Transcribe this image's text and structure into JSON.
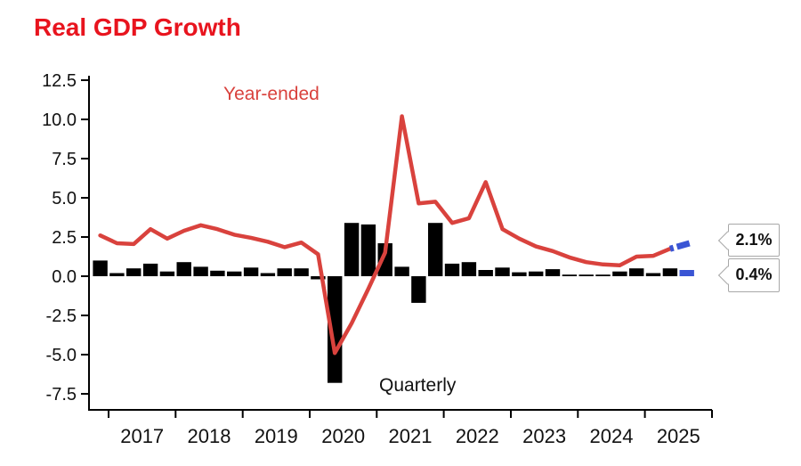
{
  "title": "Real GDP Growth",
  "series_labels": {
    "line": "Year-ended",
    "bar": "Quarterly"
  },
  "callouts": {
    "year_ended": "2.1%",
    "quarterly": "0.4%"
  },
  "colors": {
    "title": "#e8141e",
    "line": "#d9423d",
    "bar": "#000000",
    "highlight_blue": "#3a55d4",
    "axis": "#000000",
    "tick_label": "#111111",
    "callout_border": "#a8a8a8",
    "callout_text": "#111111",
    "background": "#ffffff"
  },
  "chart_data": {
    "type": "bar+line combo",
    "title": "Real GDP Growth",
    "unit": "%",
    "grid": false,
    "legend_position": "inline annotations",
    "ylim": [
      -7.5,
      12.5
    ],
    "yticks": [
      12.5,
      10.0,
      7.5,
      5.0,
      2.5,
      0.0,
      -2.5,
      -5.0,
      -7.5
    ],
    "x_axis_years": [
      "2017",
      "2018",
      "2019",
      "2020",
      "2021",
      "2022",
      "2023",
      "2024",
      "2025"
    ],
    "quarters": [
      "2016 Q4",
      "2017 Q1",
      "2017 Q2",
      "2017 Q3",
      "2017 Q4",
      "2018 Q1",
      "2018 Q2",
      "2018 Q3",
      "2018 Q4",
      "2019 Q1",
      "2019 Q2",
      "2019 Q3",
      "2019 Q4",
      "2020 Q1",
      "2020 Q2",
      "2020 Q3",
      "2020 Q4",
      "2021 Q1",
      "2021 Q2",
      "2021 Q3",
      "2021 Q4",
      "2022 Q1",
      "2022 Q2",
      "2022 Q3",
      "2022 Q4",
      "2023 Q1",
      "2023 Q2",
      "2023 Q3",
      "2023 Q4",
      "2024 Q1",
      "2024 Q2",
      "2024 Q3",
      "2024 Q4",
      "2025 Q1",
      "2025 Q2",
      "2025 Q3"
    ],
    "series": [
      {
        "name": "Quarterly",
        "type": "bar",
        "values": [
          1.0,
          0.2,
          0.5,
          0.8,
          0.3,
          0.9,
          0.6,
          0.35,
          0.3,
          0.55,
          0.2,
          0.5,
          0.5,
          -0.2,
          -6.8,
          3.4,
          3.3,
          2.1,
          0.6,
          -1.7,
          3.4,
          0.8,
          0.9,
          0.4,
          0.55,
          0.25,
          0.3,
          0.45,
          0.1,
          0.1,
          0.1,
          0.3,
          0.5,
          0.2,
          0.5,
          0.4
        ],
        "last_value_highlighted_blue": true,
        "latest_label": "0.4%"
      },
      {
        "name": "Year-ended",
        "type": "line",
        "values": [
          2.6,
          2.1,
          2.05,
          3.0,
          2.4,
          2.9,
          3.25,
          3.0,
          2.65,
          2.45,
          2.2,
          1.85,
          2.15,
          1.4,
          -4.9,
          -3.0,
          -0.8,
          1.5,
          10.2,
          4.65,
          4.75,
          3.4,
          3.7,
          6.0,
          3.0,
          2.4,
          1.9,
          1.6,
          1.2,
          0.9,
          0.75,
          0.7,
          1.25,
          1.3,
          1.75,
          2.1
        ],
        "last_segment_forecast_blue_dashed": true,
        "latest_label": "2.1%"
      }
    ]
  }
}
